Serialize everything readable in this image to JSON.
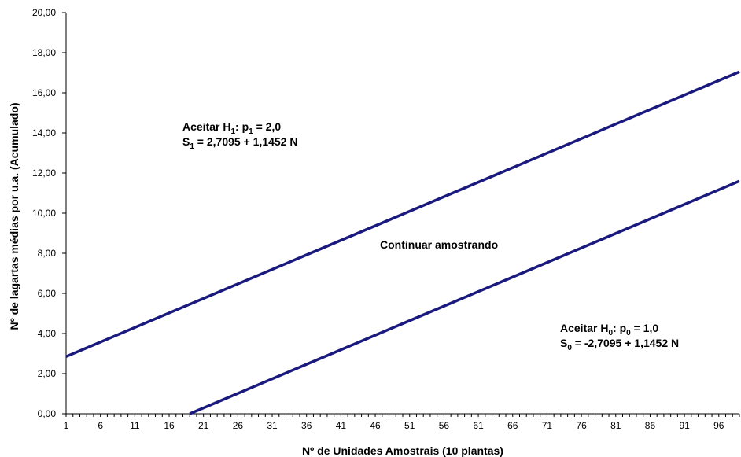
{
  "chart_data": {
    "type": "line",
    "xlabel": "Nº de Unidades Amostrais (10 plantas)",
    "ylabel": "Nº de lagartas médias por u.a. (Acumulado)",
    "xlim": [
      1,
      99
    ],
    "ylim": [
      0,
      20
    ],
    "x_ticks": [
      "1",
      "6",
      "11",
      "16",
      "21",
      "26",
      "31",
      "36",
      "41",
      "46",
      "51",
      "56",
      "61",
      "66",
      "71",
      "76",
      "81",
      "86",
      "91",
      "96"
    ],
    "y_ticks": [
      "0,00",
      "2,00",
      "4,00",
      "6,00",
      "8,00",
      "10,00",
      "12,00",
      "14,00",
      "16,00",
      "18,00",
      "20,00"
    ],
    "grid": false,
    "series": [
      {
        "intercept": 2.7095,
        "slope": 1.1452,
        "color": "#1a1a7e",
        "x": [
          1,
          99
        ],
        "y": [
          2.85,
          17.05
        ]
      },
      {
        "intercept": -2.7095,
        "slope": 1.1452,
        "color": "#1a1a7e",
        "x": [
          19,
          99
        ],
        "y": [
          0.0,
          11.6
        ]
      }
    ],
    "annotations": {
      "h1_line1": {
        "pre": "Aceitar H",
        "sub1": "1",
        "mid": ": p",
        "sub2": "1",
        "post": " = 2,0"
      },
      "h1_line2": {
        "pre": "S",
        "sub1": "1",
        "post": " = 2,7095 + 1,1452 N"
      },
      "continue": "Continuar amostrando",
      "h0_line1": {
        "pre": "Aceitar H",
        "sub1": "0",
        "mid": ": p",
        "sub2": "0",
        "post": " = 1,0"
      },
      "h0_line2": {
        "pre": "S",
        "sub1": "0",
        "post": " = -2,7095 + 1,1452 N"
      }
    }
  }
}
